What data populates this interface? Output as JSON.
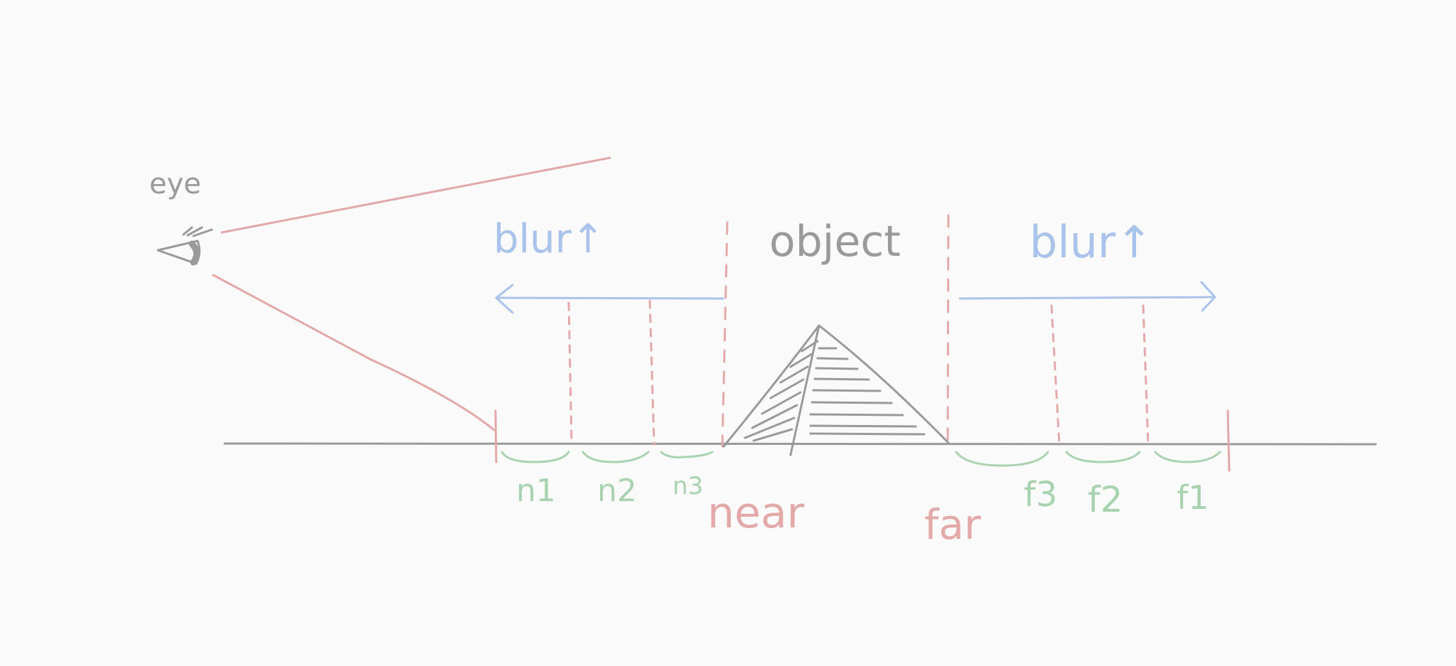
{
  "labels": {
    "eye": "eye",
    "blur_near": "blur↑",
    "blur_far": "blur↑",
    "object": "object",
    "near": "near",
    "far": "far",
    "n1": "n1",
    "n2": "n2",
    "n3": "n3",
    "f3": "f3",
    "f2": "f2",
    "f1": "f1"
  },
  "colors": {
    "background": "#fafafa",
    "gray": "#9a9a9a",
    "red": "#e3a9a9",
    "blue": "#a9c3ea",
    "green": "#a9d3b0"
  }
}
